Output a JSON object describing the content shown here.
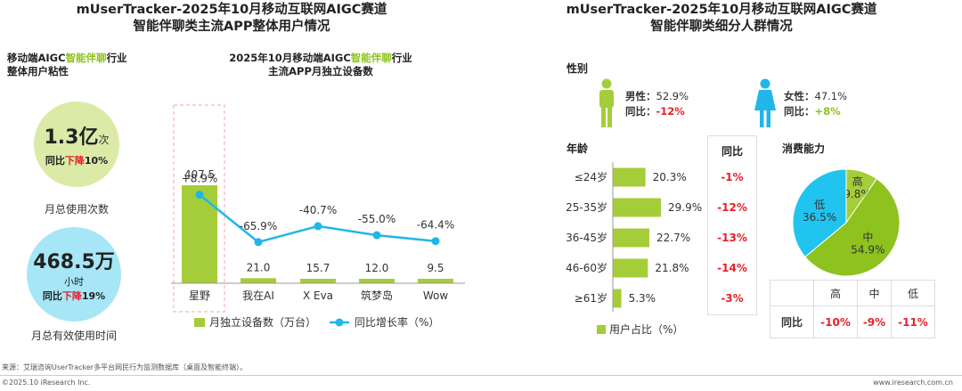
{
  "left_title": [
    "mUserTracker-2025年10月移动互联网AIGC赛道",
    "智能伴聊类主流APP整体用户情况"
  ],
  "right_title": [
    "mUserTracker-2025年10月移动互联网AIGC赛道",
    "智能伴聊类细分人群情况"
  ],
  "stickiness": {
    "title_pre": "移动端AIGC",
    "title_hl": "智能伴聊",
    "title_post": "行业",
    "title_line2": "整体用户粘性",
    "usage": {
      "value": "1.3",
      "unit_big": "亿",
      "unit_small": "次",
      "yoy_pre": "同比",
      "yoy_dir": "下降",
      "yoy_val": "10%",
      "caption": "月总使用次数"
    },
    "time": {
      "value": "468.5",
      "unit_big": "万",
      "unit_small": "小时",
      "yoy_pre": "同比",
      "yoy_dir": "下降",
      "yoy_val": "19%",
      "caption": "月总有效使用时间"
    },
    "colors": {
      "usage_circle": "#dbeaa6",
      "time_circle": "#a6e6f6"
    }
  },
  "chart_data": {
    "type": "bar",
    "title_pre": "2025年10月移动端AIGC",
    "title_hl": "智能伴聊",
    "title_post": "行业",
    "title_line2": "主流APP月独立设备数",
    "categories": [
      "星野",
      "我在AI",
      "X Eva",
      "筑梦岛",
      "Wow"
    ],
    "series": [
      {
        "name": "月独立设备数（万台）",
        "values": [
          407.5,
          21.0,
          15.7,
          12.0,
          9.5
        ],
        "labels": [
          "407.5",
          "21.0",
          "15.7",
          "12.0",
          "9.5"
        ],
        "color": "#a5cd39"
      },
      {
        "name": "同比增长率（%）",
        "values": [
          8.9,
          -65.9,
          -40.7,
          -55.0,
          -64.4
        ],
        "labels": [
          "+8.9%",
          "-65.9%",
          "-40.7%",
          "-55.0%",
          "-64.4%"
        ],
        "color": "#20b6e8"
      }
    ],
    "legend": "bottom"
  },
  "gender": {
    "title": "性别",
    "male": {
      "label": "男性：",
      "share": "52.9%",
      "yoy_label": "同比：",
      "yoy": "-12%"
    },
    "female": {
      "label": "女性：",
      "share": "47.1%",
      "yoy_label": "同比：",
      "yoy": "+8%"
    },
    "colors": {
      "male": "#a5cd39",
      "female": "#20b6e8"
    }
  },
  "age": {
    "title": "年龄",
    "yoy_header": "同比",
    "groups": [
      {
        "label": "≤24岁",
        "value": 20.3,
        "display": "20.3%",
        "yoy": "-1%"
      },
      {
        "label": "25-35岁",
        "value": 29.9,
        "display": "29.9%",
        "yoy": "-12%"
      },
      {
        "label": "36-45岁",
        "value": 22.7,
        "display": "22.7%",
        "yoy": "-13%"
      },
      {
        "label": "46-60岁",
        "value": 21.8,
        "display": "21.8%",
        "yoy": "-14%"
      },
      {
        "label": "≥61岁",
        "value": 5.3,
        "display": "5.3%",
        "yoy": "-3%"
      }
    ],
    "legend": "用户占比（%）",
    "color": "#a5cd39"
  },
  "consumption": {
    "title": "消费能力",
    "slices": [
      {
        "label": "高",
        "value": 9.8,
        "display": "9.8%",
        "color": "#a5cd39"
      },
      {
        "label": "中",
        "value": 54.9,
        "display": "54.9%",
        "color": "#8dc21f"
      },
      {
        "label": "低",
        "value": 36.5,
        "display": "36.5%",
        "color": "#20c4ef"
      }
    ],
    "table": {
      "headers": [
        "高",
        "中",
        "低"
      ],
      "row_label": "同比",
      "values": [
        "-10%",
        "-9%",
        "-11%"
      ]
    }
  },
  "footer": {
    "source": "来源：艾瑞咨询UserTracker多平台网民行为监测数据库（桌面及智能终端）。",
    "copyright": "©2025.10 iResearch Inc.",
    "site": "www.iresearch.com.cn"
  }
}
